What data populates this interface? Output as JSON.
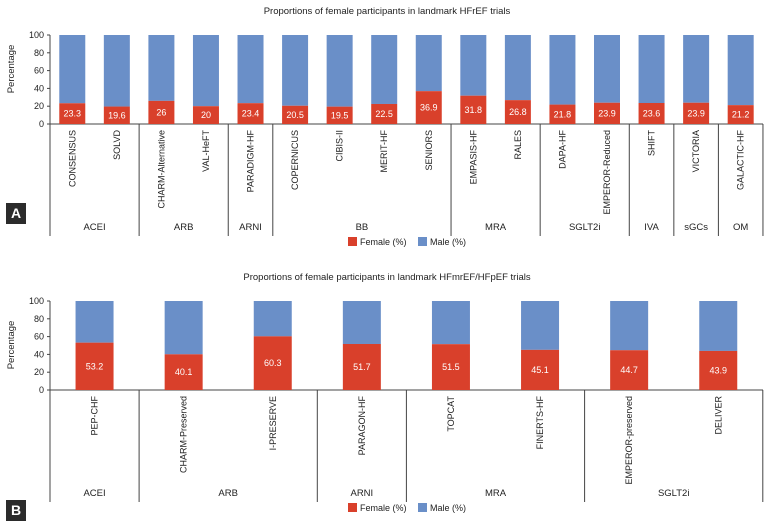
{
  "colors": {
    "female": "#d9402b",
    "male": "#6a8fc8",
    "panel_box": "#2b2b2b",
    "axis": "#444444"
  },
  "chart_data": [
    {
      "panel_label": "A",
      "type": "bar",
      "stacked": true,
      "title": "Proportions of female participants in landmark HFrEF trials",
      "ylabel": "Percentage",
      "ylim": [
        0,
        100
      ],
      "yticks": [
        "0",
        "20",
        "40",
        "60",
        "80",
        "100"
      ],
      "categories": [
        "CONSENSUS",
        "SOLVD",
        "CHARM-Alternative",
        "VAL-HeFT",
        "PARADIGM-HF",
        "COPERNICUS",
        "CIBIS-II",
        "MERIT-HF",
        "SENIORS",
        "EMPASIS-HF",
        "RALES",
        "DAPA-HF",
        "EMPEROR-Reduced",
        "SHIFT",
        "VICTORIA",
        "GALACTIC-HF"
      ],
      "series": [
        {
          "name": "Female (%)",
          "values": [
            23.3,
            19.6,
            26,
            20,
            23.4,
            20.5,
            19.5,
            22.5,
            36.9,
            31.8,
            26.8,
            21.8,
            23.9,
            23.6,
            23.9,
            21.2
          ]
        },
        {
          "name": "Male (%)",
          "values": [
            76.7,
            80.4,
            74,
            80,
            76.6,
            79.5,
            80.5,
            77.5,
            63.1,
            68.2,
            73.2,
            78.2,
            76.1,
            76.4,
            76.1,
            78.8
          ]
        }
      ],
      "labels": [
        "23.3",
        "19.6",
        "26",
        "20",
        "23.4",
        "20.5",
        "19.5",
        "22.5",
        "36.9",
        "31.8",
        "26.8",
        "21.8",
        "23.9",
        "23.6",
        "23.9",
        "21.2"
      ],
      "groups": [
        {
          "name": "ACEI",
          "count": 2
        },
        {
          "name": "ARB",
          "count": 2
        },
        {
          "name": "ARNI",
          "count": 1
        },
        {
          "name": "BB",
          "count": 4
        },
        {
          "name": "MRA",
          "count": 2
        },
        {
          "name": "SGLT2i",
          "count": 2
        },
        {
          "name": "IVA",
          "count": 1
        },
        {
          "name": "sGCs",
          "count": 1
        },
        {
          "name": "OM",
          "count": 1
        }
      ],
      "legend": [
        "Female (%)",
        "Male (%)"
      ],
      "legend_position": "bottom"
    },
    {
      "panel_label": "B",
      "type": "bar",
      "stacked": true,
      "title": "Proportions of female participants in landmark HFmrEF/HFpEF trials",
      "ylabel": "Percentage",
      "ylim": [
        0,
        100
      ],
      "yticks": [
        "0",
        "20",
        "40",
        "60",
        "80",
        "100"
      ],
      "categories": [
        "PEP-CHF",
        "CHARM-Preserved",
        "I-PRESERVE",
        "PARAGON-HF",
        "TOPCAT",
        "FINERTS-HF",
        "EMPEROR-preserved",
        "DELIVER"
      ],
      "series": [
        {
          "name": "Female (%)",
          "values": [
            53.2,
            40.1,
            60.3,
            51.7,
            51.5,
            45.1,
            44.7,
            43.9
          ]
        },
        {
          "name": "Male (%)",
          "values": [
            46.8,
            59.9,
            39.7,
            48.3,
            48.5,
            54.9,
            55.3,
            56.1
          ]
        }
      ],
      "labels": [
        "53.2",
        "40.1",
        "60.3",
        "51.7",
        "51.5",
        "45.1",
        "44.7",
        "43.9"
      ],
      "groups": [
        {
          "name": "ACEI",
          "count": 1
        },
        {
          "name": "ARB",
          "count": 2
        },
        {
          "name": "ARNI",
          "count": 1
        },
        {
          "name": "MRA",
          "count": 2
        },
        {
          "name": "SGLT2i",
          "count": 2
        }
      ],
      "legend": [
        "Female (%)",
        "Male (%)"
      ],
      "legend_position": "bottom"
    }
  ]
}
